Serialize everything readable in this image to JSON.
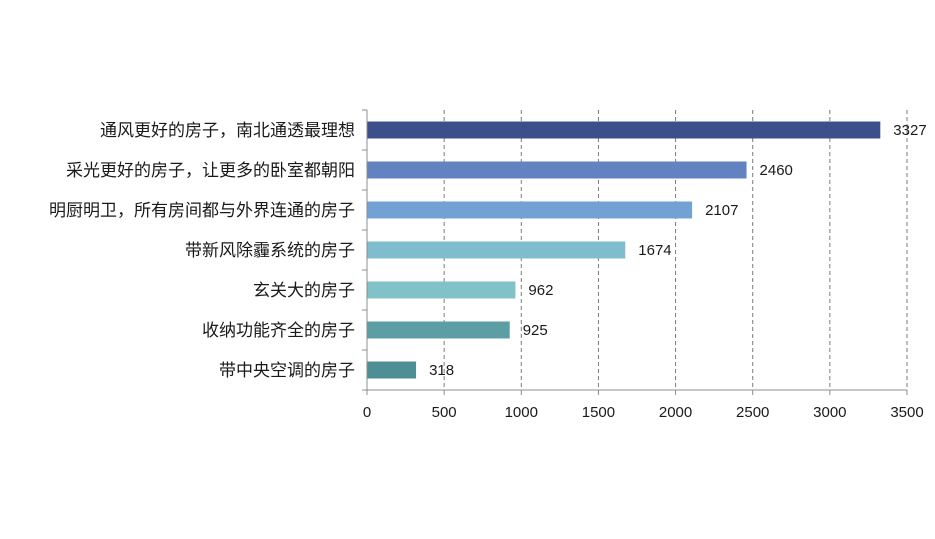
{
  "chart_data": {
    "type": "bar",
    "orientation": "horizontal",
    "categories": [
      "通风更好的房子，南北通透最理想",
      "采光更好的房子，让更多的卧室都朝阳",
      "明厨明卫，所有房间都与外界连通的房子",
      "带新风除霾系统的房子",
      "玄关大的房子",
      "收纳功能齐全的房子",
      "带中央空调的房子"
    ],
    "values": [
      3327,
      2460,
      2107,
      1674,
      962,
      925,
      318
    ],
    "colors": [
      "#3d4f8a",
      "#6283c0",
      "#72a2d4",
      "#7fbccd",
      "#80c2c8",
      "#5d9ea5",
      "#4d8f94"
    ],
    "xlim": [
      0,
      3500
    ],
    "xticks": [
      0,
      500,
      1000,
      1500,
      2000,
      2500,
      3000,
      3500
    ],
    "grid": "vertical-dashed",
    "legend": "none",
    "title": "",
    "xlabel": "",
    "ylabel": ""
  }
}
